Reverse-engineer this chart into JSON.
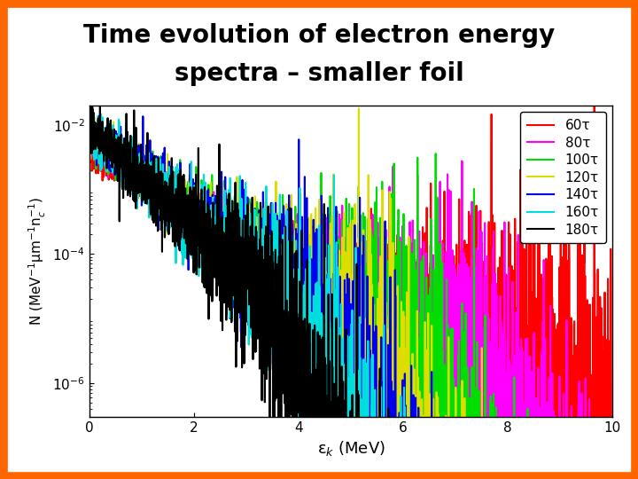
{
  "title_line1": "Time evolution of electron energy",
  "title_line2": "spectra – smaller foil",
  "title_fontsize": 20,
  "title_fontweight": "bold",
  "xlabel": "ε$_k$ (MeV)",
  "ylabel": "N (MeV$^{-1}$μm$^{-1}$n$^{-1}_c$)",
  "xlim": [
    0,
    10
  ],
  "ylim_low": 3e-07,
  "ylim_high": 0.02,
  "series": [
    {
      "label": "60τ",
      "color": "#ff0000",
      "T": 1.1,
      "cutoff": 9.5,
      "amp": 0.003,
      "seed": 42
    },
    {
      "label": "80τ",
      "color": "#ff00ff",
      "T": 0.9,
      "cutoff": 7.5,
      "amp": 0.005,
      "seed": 43
    },
    {
      "label": "100τ",
      "color": "#00dd00",
      "T": 0.8,
      "cutoff": 6.0,
      "amp": 0.006,
      "seed": 44
    },
    {
      "label": "120τ",
      "color": "#dddd00",
      "T": 0.72,
      "cutoff": 5.0,
      "amp": 0.007,
      "seed": 45
    },
    {
      "label": "140τ",
      "color": "#0000ee",
      "T": 0.65,
      "cutoff": 4.2,
      "amp": 0.008,
      "seed": 46
    },
    {
      "label": "160τ",
      "color": "#00dddd",
      "T": 0.6,
      "cutoff": 3.8,
      "amp": 0.008,
      "seed": 47
    },
    {
      "label": "180τ",
      "color": "#000000",
      "T": 0.55,
      "cutoff": 3.4,
      "amp": 0.009,
      "seed": 48
    }
  ],
  "legend_fontsize": 11,
  "border_color": "#ff6600",
  "border_width": 12
}
